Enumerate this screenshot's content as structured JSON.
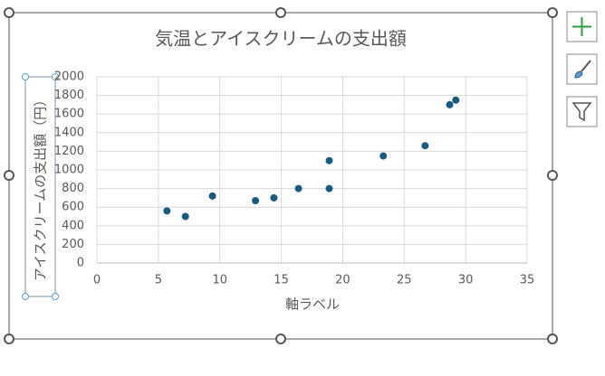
{
  "chart_data": {
    "type": "scatter",
    "title": "気温とアイスクリームの支出額",
    "x_label": "軸ラベル",
    "y_label": "アイスクリームの支出額（円）",
    "x": [
      5.7,
      7.2,
      9.4,
      12.9,
      14.4,
      16.4,
      18.9,
      18.9,
      23.3,
      26.7,
      28.7,
      29.2
    ],
    "values": [
      560,
      500,
      720,
      670,
      700,
      800,
      1100,
      800,
      1150,
      1260,
      1700,
      1750
    ],
    "color": "#1a5b7d",
    "xlim": [
      0,
      35
    ],
    "xticks": [
      0,
      5,
      10,
      15,
      20,
      25,
      30,
      35
    ],
    "ylim": [
      0,
      2000
    ],
    "yticks": [
      0,
      200,
      400,
      600,
      800,
      1000,
      1200,
      1400,
      1600,
      1800,
      2000
    ],
    "grid": true
  }
}
